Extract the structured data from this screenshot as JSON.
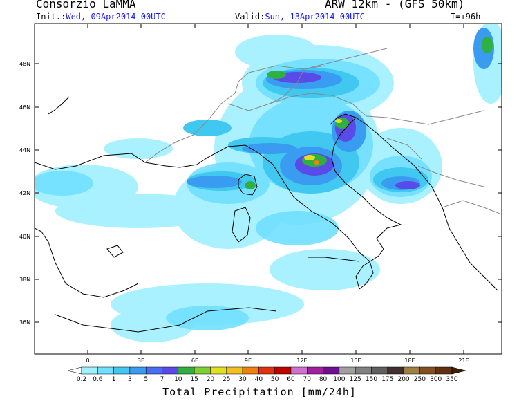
{
  "header": {
    "agency": "Consorzio LaMMA",
    "model": "ARW 12km - (GFS 50km)",
    "init_label": "Init.:",
    "init_value": "Wed, 09Apr2014 00UTC",
    "valid_label": "Valid:",
    "valid_value": "Sun, 13Apr2014 00UTC",
    "lead_time": "T=+96h"
  },
  "map": {
    "lat_ticks": [
      "48N",
      "46N",
      "44N",
      "42N",
      "40N",
      "38N",
      "36N"
    ],
    "lon_ticks": [
      "0",
      "3E",
      "6E",
      "9E",
      "12E",
      "15E",
      "18E",
      "21E"
    ],
    "coastline_color": "#000000",
    "border_color": "#888888"
  },
  "colorbar": {
    "title": "Total Precipitation [mm/24h]",
    "labels": [
      "0.2",
      "0.6",
      "1",
      "3",
      "5",
      "7",
      "10",
      "15",
      "20",
      "25",
      "30",
      "40",
      "50",
      "60",
      "70",
      "80",
      "100",
      "125",
      "150",
      "175",
      "200",
      "250",
      "300",
      "350"
    ],
    "colors": [
      "#ffffff",
      "#a0f0ff",
      "#70e0ff",
      "#40c8f0",
      "#3a9cf0",
      "#4a6ef0",
      "#5a4ae8",
      "#30b040",
      "#80d030",
      "#e0e020",
      "#f0c020",
      "#f08010",
      "#e03010",
      "#c00000",
      "#d070d0",
      "#a020a0",
      "#701090",
      "#a0a0a0",
      "#808080",
      "#606060",
      "#403030",
      "#a08040",
      "#805020",
      "#603010",
      "#402000"
    ]
  }
}
